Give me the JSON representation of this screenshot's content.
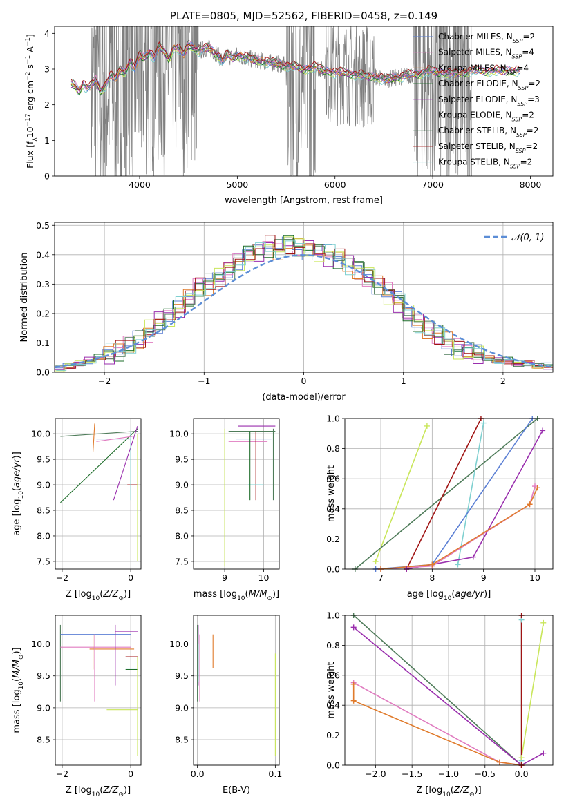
{
  "colors": {
    "Chabrier MILES": "#5b7fd4",
    "Salpeter MILES": "#e07cc0",
    "Kroupa MILES": "#e07b2c",
    "Chabrier ELODIE": "#1e6d2a",
    "Salpeter ELODIE": "#9a2fae",
    "Kroupa ELODIE": "#c9e65a",
    "Chabrier STELIB": "#4f7c5a",
    "Salpeter STELIB": "#a01414",
    "Kroupa STELIB": "#7fd0d0",
    "gaussian": "#5b8dd6",
    "data": "#808080",
    "grid": "#b0b0b0"
  },
  "chart_data": [
    {
      "id": "spectrum",
      "type": "line",
      "title": "PLATE=0805, MJD=52562, FIBERID=0458, z=0.149",
      "xlabel": "wavelength [Angstrom, rest frame]",
      "ylabel_parts": [
        "Flux [f",
        "λ",
        "10",
        "−17",
        " erg cm",
        "−2",
        " s",
        "−1",
        " A",
        "−1",
        "]"
      ],
      "xlim": [
        3130,
        8230
      ],
      "ylim": [
        0,
        4.2
      ],
      "xticks": [
        4000,
        5000,
        6000,
        7000,
        8000
      ],
      "yticks": [
        0,
        1,
        2,
        3,
        4
      ],
      "grid": false,
      "legend_position": "upper-right",
      "legend": [
        {
          "model": "Chabrier MILES",
          "n": "2"
        },
        {
          "model": "Salpeter MILES",
          "n": "4"
        },
        {
          "model": "Kroupa MILES",
          "n": "4"
        },
        {
          "model": "Chabrier ELODIE",
          "n": "2"
        },
        {
          "model": "Salpeter ELODIE",
          "n": "3"
        },
        {
          "model": "Kroupa ELODIE",
          "n": "2"
        },
        {
          "model": "Chabrier STELIB",
          "n": "2"
        },
        {
          "model": "Salpeter STELIB",
          "n": "2"
        },
        {
          "model": "Kroupa STELIB",
          "n": "2"
        }
      ],
      "model_x": [
        3300,
        3340,
        3380,
        3420,
        3460,
        3500,
        3550,
        3600,
        3650,
        3700,
        3750,
        3800,
        3850,
        3900,
        3950,
        4000,
        4050,
        4100,
        4150,
        4200,
        4250,
        4300,
        4350,
        4400,
        4450,
        4500,
        4550,
        4600,
        4650,
        4700,
        4750,
        4800,
        4850,
        4900,
        4950,
        5000,
        5100,
        5200,
        5300,
        5400,
        5500,
        5600,
        5700,
        5800,
        5900,
        6000,
        6100,
        6200,
        6300,
        6400,
        6500,
        6600,
        6700,
        6800,
        6900,
        7000,
        7100,
        7200,
        7300,
        7400
      ],
      "model_y": [
        2.6,
        2.55,
        2.35,
        2.6,
        2.45,
        2.5,
        2.7,
        2.4,
        2.55,
        2.8,
        2.7,
        3.0,
        2.9,
        3.2,
        3.0,
        3.4,
        3.3,
        3.5,
        3.3,
        3.6,
        3.5,
        3.3,
        3.6,
        3.55,
        3.4,
        3.7,
        3.6,
        3.5,
        3.55,
        3.6,
        3.5,
        3.4,
        3.2,
        3.4,
        3.3,
        3.4,
        3.3,
        3.25,
        3.2,
        3.15,
        3.1,
        3.05,
        3.0,
        3.05,
        2.95,
        2.9,
        2.9,
        2.85,
        2.8,
        2.8,
        2.7,
        2.75,
        2.8,
        2.85,
        2.9,
        2.95,
        2.9,
        2.85,
        2.9,
        2.95
      ]
    },
    {
      "id": "residuals",
      "type": "line",
      "xlabel": "(data-model)/error",
      "ylabel": "Normed distribution",
      "xlim": [
        -2.5,
        2.5
      ],
      "ylim": [
        0,
        0.51
      ],
      "xticks": [
        -2,
        -1,
        0,
        1,
        2
      ],
      "yticks": [
        0.0,
        0.1,
        0.2,
        0.3,
        0.4,
        0.5
      ],
      "grid": true,
      "legend_position": "upper-right",
      "gaussian_label": "𝒩(0, 1)",
      "bin_edges_start": -2.5,
      "bin_width": 0.1,
      "hist_values": [
        0.01,
        0.02,
        0.03,
        0.04,
        0.05,
        0.06,
        0.07,
        0.09,
        0.11,
        0.14,
        0.17,
        0.19,
        0.22,
        0.25,
        0.29,
        0.3,
        0.32,
        0.35,
        0.38,
        0.4,
        0.41,
        0.43,
        0.42,
        0.44,
        0.43,
        0.42,
        0.41,
        0.4,
        0.39,
        0.37,
        0.35,
        0.33,
        0.3,
        0.27,
        0.24,
        0.2,
        0.17,
        0.15,
        0.13,
        0.1,
        0.08,
        0.07,
        0.06,
        0.05,
        0.04,
        0.04,
        0.03,
        0.03,
        0.02,
        0.02
      ]
    },
    {
      "id": "age-vs-Z",
      "type": "scatter",
      "xlabel": "Z [log10(Z/Z⊙)]",
      "ylabel": "age [log10(age/yr)]",
      "xlim": [
        -2.2,
        0.3
      ],
      "ylim": [
        7.35,
        10.3
      ],
      "xticks": [
        -2,
        0
      ],
      "yticks": [
        7.5,
        8.0,
        8.5,
        9.0,
        9.5,
        10.0
      ],
      "grid": true,
      "crosses": [
        {
          "model": "Chabrier ELODIE",
          "x": [
            -2.05,
            0.2
          ],
          "y": [
            8.65,
            10.1
          ]
        },
        {
          "model": "Chabrier STELIB",
          "x": [
            -2.05,
            0.2
          ],
          "y": [
            9.95,
            10.05
          ]
        },
        {
          "model": "Chabrier MILES",
          "x": [
            -1.0,
            0.0
          ],
          "y": [
            9.9,
            9.9
          ]
        },
        {
          "model": "Salpeter MILES",
          "x": [
            -1.0,
            0.05
          ],
          "y": [
            9.85,
            9.95
          ]
        },
        {
          "model": "Kroupa MILES",
          "x": [
            -1.1,
            -1.05
          ],
          "y": [
            9.65,
            10.2
          ]
        },
        {
          "model": "Salpeter ELODIE",
          "x": [
            -0.5,
            0.2
          ],
          "y": [
            8.7,
            10.15
          ]
        },
        {
          "model": "Salpeter STELIB",
          "x": [
            -0.1,
            0.2
          ],
          "y": [
            9.0,
            9.0
          ]
        },
        {
          "model": "Kroupa STELIB",
          "x": [
            0.0,
            0.0
          ],
          "y": [
            8.7,
            10.05
          ]
        },
        {
          "model": "Kroupa ELODIE",
          "x": [
            -1.6,
            0.2
          ],
          "y": [
            8.25,
            8.25
          ]
        },
        {
          "model": "Kroupa ELODIE",
          "x": [
            0.2,
            0.2
          ],
          "y": [
            7.5,
            10.0
          ]
        }
      ]
    },
    {
      "id": "age-vs-mass",
      "type": "scatter",
      "xlabel": "mass [log10(M/M⊙)]",
      "ylabel": "",
      "xlim": [
        8.2,
        10.4
      ],
      "ylim": [
        7.35,
        10.3
      ],
      "xticks": [
        9,
        10
      ],
      "yticks": [
        7.5,
        8.0,
        8.5,
        9.0,
        9.5,
        10.0
      ],
      "grid": true,
      "crosses": [
        {
          "model": "Chabrier STELIB",
          "x": [
            9.1,
            10.3
          ],
          "y": [
            10.05,
            10.05
          ]
        },
        {
          "model": "Salpeter ELODIE",
          "x": [
            9.35,
            10.3
          ],
          "y": [
            10.15,
            10.15
          ]
        },
        {
          "model": "Chabrier MILES",
          "x": [
            9.3,
            10.2
          ],
          "y": [
            9.9,
            9.9
          ]
        },
        {
          "model": "Salpeter MILES",
          "x": [
            9.1,
            10.1
          ],
          "y": [
            9.85,
            9.85
          ]
        },
        {
          "model": "Chabrier STELIB",
          "x": [
            10.25,
            10.25
          ],
          "y": [
            8.7,
            10.1
          ]
        },
        {
          "model": "Salpeter STELIB",
          "x": [
            9.8,
            9.8
          ],
          "y": [
            8.7,
            10.05
          ]
        },
        {
          "model": "Kroupa STELIB",
          "x": [
            9.6,
            10.0
          ],
          "y": [
            9.0,
            9.0
          ]
        },
        {
          "model": "Chabrier ELODIE",
          "x": [
            9.65,
            9.65
          ],
          "y": [
            8.7,
            10.05
          ]
        },
        {
          "model": "Kroupa ELODIE",
          "x": [
            8.3,
            9.9
          ],
          "y": [
            8.25,
            8.25
          ]
        },
        {
          "model": "Kroupa ELODIE",
          "x": [
            9.0,
            9.0
          ],
          "y": [
            7.4,
            10.1
          ]
        }
      ]
    },
    {
      "id": "weight-vs-age",
      "type": "line",
      "xlabel": "age [log10(age/yr)]",
      "ylabel": "mass weight",
      "xlim": [
        6.3,
        10.35
      ],
      "ylim": [
        0,
        1.0
      ],
      "xticks": [
        7,
        8,
        9,
        10
      ],
      "yticks": [
        0.0,
        0.2,
        0.4,
        0.6,
        0.8,
        1.0
      ],
      "grid": true,
      "series": [
        {
          "model": "Kroupa ELODIE",
          "x": [
            6.9,
            7.9
          ],
          "y": [
            0.05,
            0.95
          ]
        },
        {
          "model": "Chabrier STELIB",
          "x": [
            6.5,
            10.05
          ],
          "y": [
            0.0,
            1.0
          ]
        },
        {
          "model": "Salpeter STELIB",
          "x": [
            7.5,
            8.95
          ],
          "y": [
            0.0,
            1.0
          ]
        },
        {
          "model": "Kroupa STELIB",
          "x": [
            8.5,
            9.0
          ],
          "y": [
            0.03,
            0.97
          ]
        },
        {
          "model": "Chabrier MILES",
          "x": [
            6.9,
            8.0,
            9.95
          ],
          "y": [
            0.0,
            0.03,
            1.0
          ]
        },
        {
          "model": "Salpeter ELODIE",
          "x": [
            7.5,
            8.8,
            10.15
          ],
          "y": [
            0.0,
            0.08,
            0.92
          ]
        },
        {
          "model": "Salpeter MILES",
          "x": [
            7.0,
            8.0,
            9.9,
            10.0
          ],
          "y": [
            0.0,
            0.02,
            0.43,
            0.55
          ]
        },
        {
          "model": "Kroupa MILES",
          "x": [
            7.0,
            8.0,
            9.9,
            10.05
          ],
          "y": [
            0.0,
            0.03,
            0.43,
            0.54
          ]
        }
      ]
    },
    {
      "id": "mass-vs-Z",
      "type": "scatter",
      "xlabel": "Z [log10(Z/Z⊙)]",
      "ylabel": "mass [log10(M/M⊙)]",
      "xlim": [
        -2.2,
        0.3
      ],
      "ylim": [
        8.1,
        10.45
      ],
      "xticks": [
        -2,
        0
      ],
      "yticks": [
        8.5,
        9.0,
        9.5,
        10.0
      ],
      "grid": true,
      "crosses": [
        {
          "model": "Chabrier STELIB",
          "x": [
            -2.05,
            0.2
          ],
          "y": [
            10.25,
            10.25
          ]
        },
        {
          "model": "Chabrier STELIB",
          "x": [
            -2.05,
            -2.05
          ],
          "y": [
            9.1,
            10.3
          ]
        },
        {
          "model": "Chabrier MILES",
          "x": [
            -2.05,
            0.0
          ],
          "y": [
            10.15,
            10.15
          ]
        },
        {
          "model": "Salpeter MILES",
          "x": [
            -2.05,
            0.0
          ],
          "y": [
            9.95,
            9.95
          ]
        },
        {
          "model": "Kroupa MILES",
          "x": [
            -1.2,
            0.1
          ],
          "y": [
            9.92,
            9.92
          ]
        },
        {
          "model": "Kroupa MILES",
          "x": [
            -1.1,
            -1.1
          ],
          "y": [
            9.6,
            10.15
          ]
        },
        {
          "model": "Salpeter MILES",
          "x": [
            -1.05,
            -1.05
          ],
          "y": [
            9.1,
            10.15
          ]
        },
        {
          "model": "Salpeter ELODIE",
          "x": [
            -0.45,
            0.2
          ],
          "y": [
            10.2,
            10.2
          ]
        },
        {
          "model": "Salpeter ELODIE",
          "x": [
            -0.45,
            -0.45
          ],
          "y": [
            9.35,
            10.3
          ]
        },
        {
          "model": "Salpeter STELIB",
          "x": [
            -0.15,
            0.2
          ],
          "y": [
            9.8,
            9.8
          ]
        },
        {
          "model": "Kroupa STELIB",
          "x": [
            -0.15,
            0.2
          ],
          "y": [
            9.62,
            9.62
          ]
        },
        {
          "model": "Chabrier ELODIE",
          "x": [
            -0.15,
            0.2
          ],
          "y": [
            9.6,
            9.6
          ]
        },
        {
          "model": "Kroupa ELODIE",
          "x": [
            -0.7,
            0.2
          ],
          "y": [
            8.97,
            8.97
          ]
        },
        {
          "model": "Kroupa ELODIE",
          "x": [
            0.2,
            0.2
          ],
          "y": [
            8.25,
            9.8
          ]
        }
      ]
    },
    {
      "id": "mass-vs-ebv",
      "type": "scatter",
      "xlabel": "E(B-V)",
      "ylabel": "",
      "xlim": [
        -0.005,
        0.105
      ],
      "ylim": [
        8.1,
        10.45
      ],
      "xticks": [
        0.0,
        0.1
      ],
      "yticks": [
        8.5,
        9.0,
        9.5,
        10.0
      ],
      "grid": true,
      "crosses": [
        {
          "model": "Chabrier STELIB",
          "x": [
            0.0,
            0.0
          ],
          "y": [
            9.1,
            10.3
          ]
        },
        {
          "model": "Salpeter ELODIE",
          "x": [
            0.001,
            0.001
          ],
          "y": [
            9.35,
            10.3
          ]
        },
        {
          "model": "Salpeter MILES",
          "x": [
            0.003,
            0.003
          ],
          "y": [
            9.1,
            10.15
          ]
        },
        {
          "model": "Kroupa STELIB",
          "x": [
            0.001,
            0.001
          ],
          "y": [
            9.4,
            10.0
          ]
        },
        {
          "model": "Kroupa MILES",
          "x": [
            0.02,
            0.02
          ],
          "y": [
            9.62,
            10.15
          ]
        },
        {
          "model": "Kroupa ELODIE",
          "x": [
            0.1,
            0.1
          ],
          "y": [
            8.25,
            9.85
          ]
        }
      ]
    },
    {
      "id": "weight-vs-Z",
      "type": "line",
      "xlabel": "Z [log10(Z/Z⊙)]",
      "ylabel": "mass weight",
      "xlim": [
        -2.42,
        0.43
      ],
      "ylim": [
        0,
        1.0
      ],
      "xticks": [
        -2.0,
        -1.5,
        -1.0,
        -0.5,
        0.0
      ],
      "yticks": [
        0.0,
        0.2,
        0.4,
        0.6,
        0.8,
        1.0
      ],
      "grid": true,
      "series": [
        {
          "model": "Chabrier STELIB",
          "x": [
            -2.3,
            0.0
          ],
          "y": [
            1.0,
            0.0
          ]
        },
        {
          "model": "Salpeter ELODIE",
          "x": [
            -2.3,
            0.0,
            0.3
          ],
          "y": [
            0.92,
            0.0,
            0.08
          ]
        },
        {
          "model": "Salpeter MILES",
          "x": [
            -2.3,
            -0.3,
            0.0
          ],
          "y": [
            0.55,
            0.02,
            0.0
          ]
        },
        {
          "model": "Kroupa MILES",
          "x": [
            -2.3,
            -2.3,
            -0.3,
            0.0
          ],
          "y": [
            0.54,
            0.43,
            0.02,
            0.0
          ]
        },
        {
          "model": "Kroupa STELIB",
          "x": [
            0.0,
            0.0
          ],
          "y": [
            0.97,
            0.03
          ]
        },
        {
          "model": "Kroupa ELODIE",
          "x": [
            0.0,
            0.3
          ],
          "y": [
            0.05,
            0.95
          ]
        },
        {
          "model": "Salpeter STELIB",
          "x": [
            0.0,
            0.0
          ],
          "y": [
            1.0,
            0.0
          ]
        }
      ]
    }
  ]
}
